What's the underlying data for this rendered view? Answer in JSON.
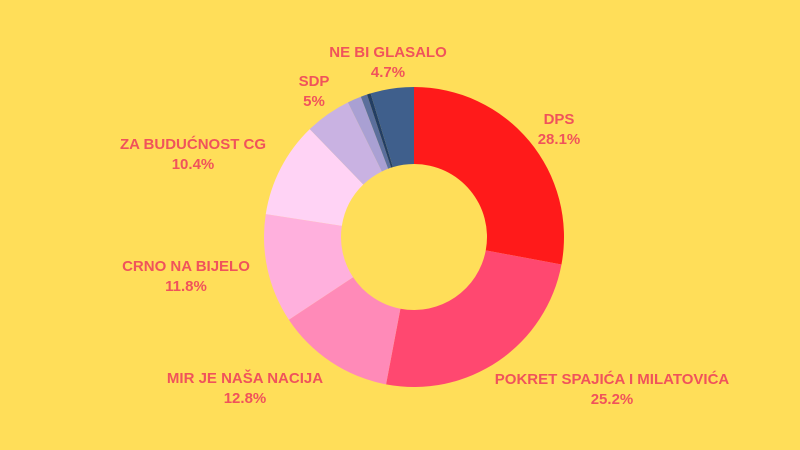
{
  "chart_data": {
    "type": "pie",
    "title": "",
    "donut": true,
    "background_color": "#FFDE59",
    "label_color": "#F0535B",
    "slices": [
      {
        "label": "DPS",
        "value_label": "28.1%",
        "value": 28.1,
        "color": "#FF1A1A"
      },
      {
        "label": "POKRET SPAJIĆA I MILATOVIĆA",
        "value_label": "25.2%",
        "value": 25.2,
        "color": "#FF4870"
      },
      {
        "label": "MIR JE NAŠA NACIJA",
        "value_label": "12.8%",
        "value": 12.8,
        "color": "#FF8AB8"
      },
      {
        "label": "CRNO NA BIJELO",
        "value_label": "11.8%",
        "value": 11.8,
        "color": "#FFB0DD"
      },
      {
        "label": "ZA BUDUĆNOST CG",
        "value_label": "10.4%",
        "value": 10.4,
        "color": "#FFD3F5"
      },
      {
        "label": "SDP",
        "value_label": "5%",
        "value": 5.0,
        "color": "#C9B2E2"
      },
      {
        "label": "",
        "value_label": "",
        "value": 1.5,
        "color": "#A9A0D3"
      },
      {
        "label": "",
        "value_label": "",
        "value": 0.7,
        "color": "#5B6F9C"
      },
      {
        "label": "",
        "value_label": "",
        "value": 0.4,
        "color": "#233E63"
      },
      {
        "label": "NE BI GLASALO",
        "value_label": "4.7%",
        "value": 4.7,
        "color": "#3F5F8C"
      }
    ]
  }
}
